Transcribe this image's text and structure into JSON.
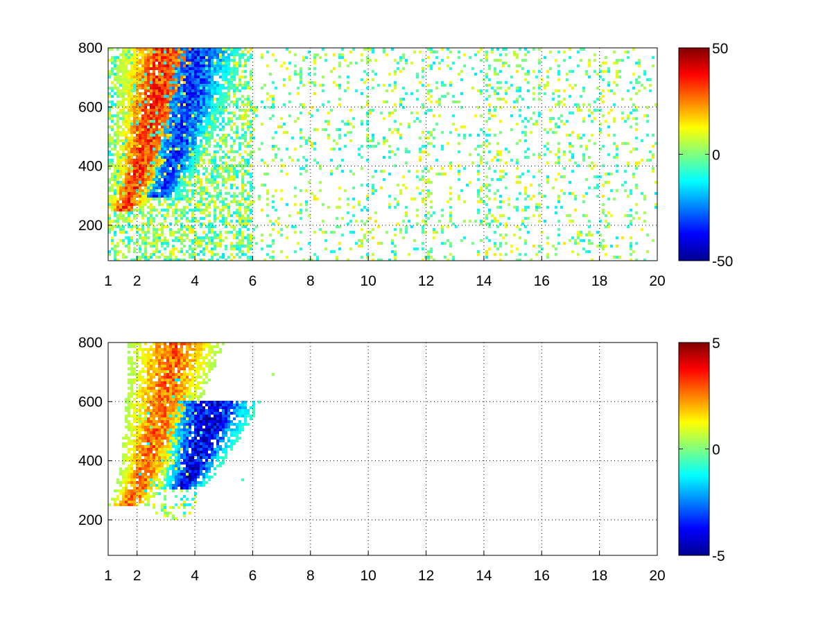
{
  "chart_data": [
    {
      "type": "heatmap",
      "title": "",
      "xlabel": "",
      "ylabel": "",
      "xlim": [
        1,
        20
      ],
      "ylim": [
        80,
        800
      ],
      "xticks": [
        1,
        2,
        4,
        6,
        8,
        10,
        12,
        14,
        16,
        18,
        20
      ],
      "yticks": [
        200,
        400,
        600,
        800
      ],
      "grid": true,
      "colormap": "jet",
      "clim": [
        -50,
        50
      ],
      "colorbar_ticks": [
        -50,
        0,
        50
      ],
      "colorbar_location": "right",
      "missing_color": "#ffffff",
      "features": [
        {
          "kind": "ridge",
          "sign": 1,
          "value": 35,
          "x_range": [
            1.4,
            3.4
          ],
          "y_range": [
            250,
            800
          ]
        },
        {
          "kind": "ridge",
          "sign": -1,
          "value": -35,
          "x_range": [
            2.6,
            4.6
          ],
          "y_range": [
            290,
            800
          ]
        },
        {
          "kind": "scatter",
          "value_range": [
            -15,
            15
          ],
          "x_range": [
            1,
            20
          ],
          "y_range": [
            80,
            800
          ]
        }
      ]
    },
    {
      "type": "heatmap",
      "title": "",
      "xlabel": "",
      "ylabel": "",
      "xlim": [
        1,
        20
      ],
      "ylim": [
        80,
        800
      ],
      "xticks": [
        1,
        2,
        4,
        6,
        8,
        10,
        12,
        14,
        16,
        18,
        20
      ],
      "yticks": [
        200,
        400,
        600,
        800
      ],
      "grid": true,
      "colormap": "jet",
      "clim": [
        -5,
        5
      ],
      "colorbar_ticks": [
        -5,
        0,
        5
      ],
      "colorbar_location": "right",
      "missing_color": "#ffffff",
      "features": [
        {
          "kind": "ridge",
          "sign": 1,
          "value": 3,
          "x_range": [
            1.6,
            3.8
          ],
          "y_range": [
            250,
            800
          ]
        },
        {
          "kind": "ridge",
          "sign": -1,
          "value": -4.5,
          "x_range": [
            3.4,
            5.0
          ],
          "y_range": [
            300,
            600
          ]
        },
        {
          "kind": "scatter",
          "value_range": [
            -1.5,
            1.5
          ],
          "x_range": [
            1.4,
            6.8
          ],
          "y_range": [
            200,
            800
          ]
        }
      ]
    }
  ]
}
